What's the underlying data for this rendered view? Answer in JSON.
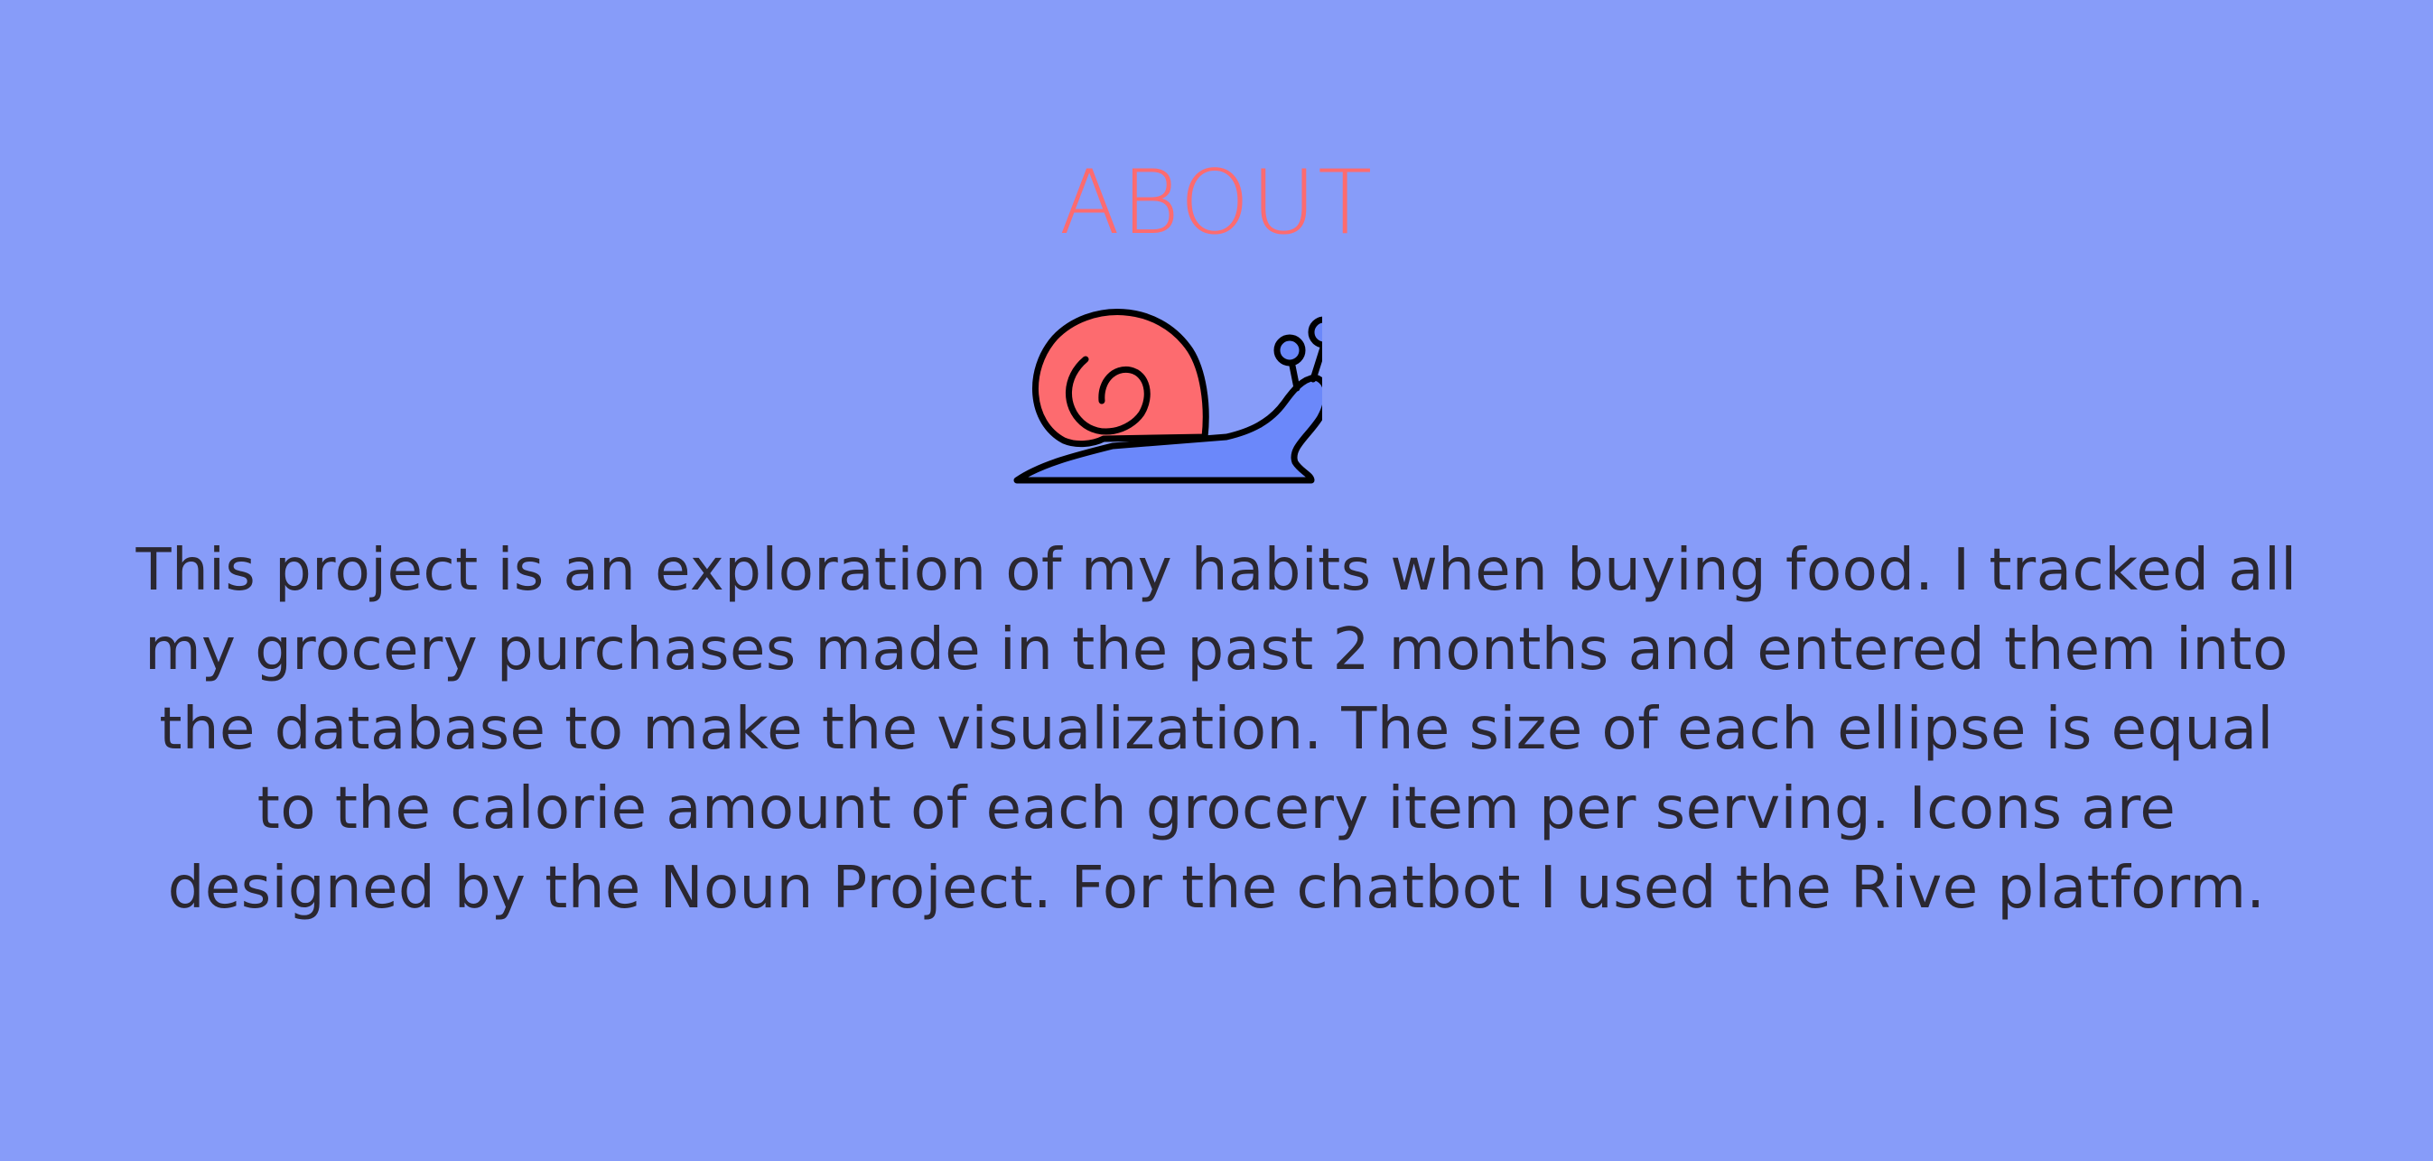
{
  "page": {
    "title": "ABOUT",
    "body": "This project is an exploration of my habits when buying food. I tracked all my grocery purchases made in the past 2 months and entered them into the database to make the visualization. The size of each ellipse is equal to the calorie amount of each grocery item per serving. Icons are designed by the Noun Project. For the chatbot I used the Rive platform.",
    "icon": "snail-icon"
  },
  "colors": {
    "background": "#879cf9",
    "title": "#fd6b6f",
    "shell": "#fd6b6f",
    "snail_body": "#6b88fa",
    "outline": "#000000",
    "text": "#2a2731"
  }
}
